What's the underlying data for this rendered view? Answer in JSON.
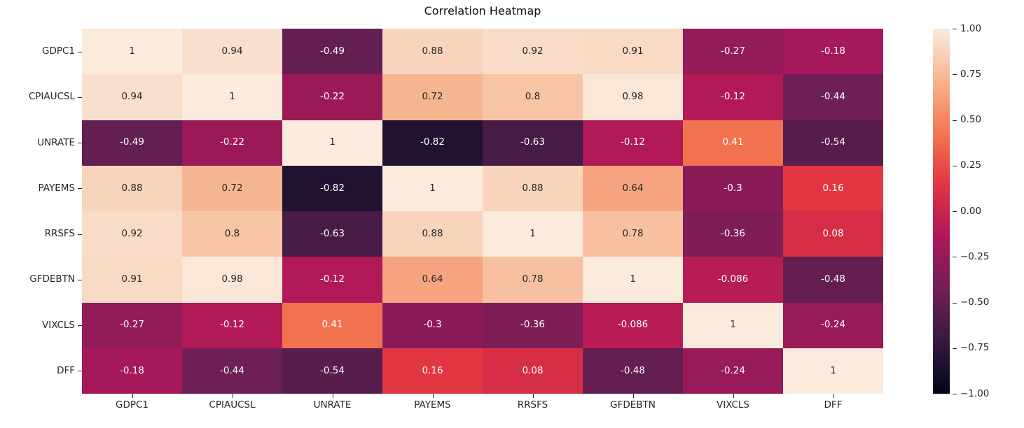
{
  "title": "Correlation Heatmap",
  "chart_data": {
    "type": "heatmap",
    "title": "Correlation Heatmap",
    "categories": [
      "GDPC1",
      "CPIAUCSL",
      "UNRATE",
      "PAYEMS",
      "RRSFS",
      "GFDEBTN",
      "VIXCLS",
      "DFF"
    ],
    "matrix": [
      [
        1,
        0.94,
        -0.49,
        0.88,
        0.92,
        0.91,
        -0.27,
        -0.18
      ],
      [
        0.94,
        1,
        -0.22,
        0.72,
        0.8,
        0.98,
        -0.12,
        -0.44
      ],
      [
        -0.49,
        -0.22,
        1,
        -0.82,
        -0.63,
        -0.12,
        0.41,
        -0.54
      ],
      [
        0.88,
        0.72,
        -0.82,
        1,
        0.88,
        0.64,
        -0.3,
        0.16
      ],
      [
        0.92,
        0.8,
        -0.63,
        0.88,
        1,
        0.78,
        -0.36,
        0.08
      ],
      [
        0.91,
        0.98,
        -0.12,
        0.64,
        0.78,
        1,
        -0.086,
        -0.48
      ],
      [
        -0.27,
        -0.12,
        0.41,
        -0.3,
        -0.36,
        -0.086,
        1,
        -0.24
      ],
      [
        -0.18,
        -0.44,
        -0.54,
        0.16,
        0.08,
        -0.48,
        -0.24,
        1
      ]
    ],
    "vmin": -1,
    "vmax": 1,
    "colorbar_tick_labels": [
      "1.00",
      "0.75",
      "0.50",
      "0.25",
      "0.00",
      "−0.25",
      "−0.50",
      "−0.75",
      "−1.00"
    ],
    "colormap": {
      "name": "rocket",
      "anchors": [
        {
          "t": 0.0,
          "hex": "#03051A"
        },
        {
          "t": 0.143,
          "hex": "#35193E"
        },
        {
          "t": 0.286,
          "hex": "#701F57"
        },
        {
          "t": 0.429,
          "hex": "#AD1759"
        },
        {
          "t": 0.571,
          "hex": "#E13342"
        },
        {
          "t": 0.714,
          "hex": "#F37651"
        },
        {
          "t": 0.857,
          "hex": "#F6B48F"
        },
        {
          "t": 1.0,
          "hex": "#FAEBDD"
        }
      ]
    },
    "annotation_colors": {
      "dark": "#262626",
      "light": "#FFFFFF"
    },
    "background": "#FFFFFF",
    "legend_position": "right",
    "grid": false
  }
}
